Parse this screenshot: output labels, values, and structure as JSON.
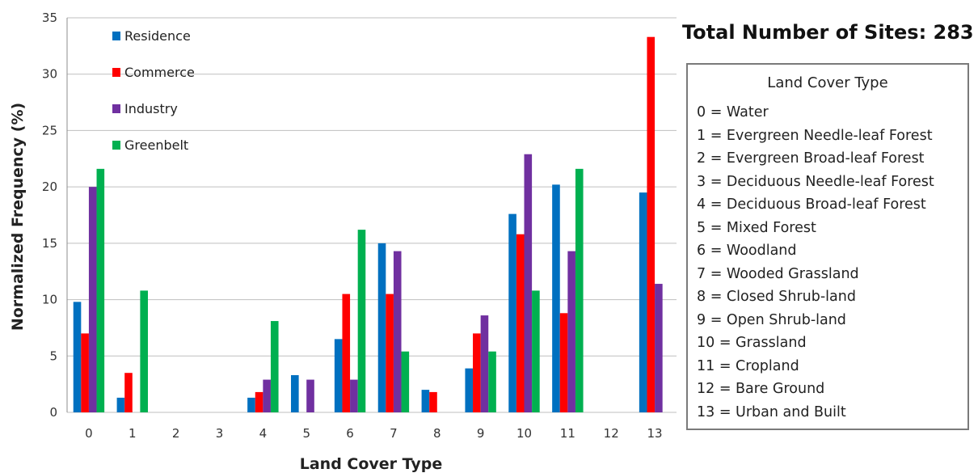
{
  "chart_data": {
    "type": "bar",
    "title": "",
    "xlabel": "Land Cover Type",
    "ylabel": "Normalized Frequency (%)",
    "ylim": [
      0,
      35
    ],
    "yticks": [
      0,
      5,
      10,
      15,
      20,
      25,
      30,
      35
    ],
    "categories": [
      "0",
      "1",
      "2",
      "3",
      "4",
      "5",
      "6",
      "7",
      "8",
      "9",
      "10",
      "11",
      "12",
      "13"
    ],
    "grid": "horizontal",
    "legend_position": "top-left",
    "series": [
      {
        "name": "Residence",
        "color": "#0070c0",
        "values": [
          9.8,
          1.3,
          0,
          0,
          1.3,
          3.3,
          6.5,
          15.0,
          2.0,
          3.9,
          17.6,
          20.2,
          0,
          19.5
        ]
      },
      {
        "name": "Commerce",
        "color": "#ff0000",
        "values": [
          7.0,
          3.5,
          0,
          0,
          1.8,
          0,
          10.5,
          10.5,
          1.8,
          7.0,
          15.8,
          8.8,
          0,
          33.3
        ]
      },
      {
        "name": "Industry",
        "color": "#7030a0",
        "values": [
          20.0,
          0,
          0,
          0,
          2.9,
          2.9,
          2.9,
          14.3,
          0,
          8.6,
          22.9,
          14.3,
          0,
          11.4
        ]
      },
      {
        "name": "Greenbelt",
        "color": "#00b050",
        "values": [
          21.6,
          10.8,
          0,
          0,
          8.1,
          0,
          16.2,
          5.4,
          0,
          5.4,
          10.8,
          21.6,
          0,
          0
        ]
      }
    ]
  },
  "summary": {
    "total_sites_text": "Total Number of Sites: 283",
    "legend_box_title": "Land Cover Type",
    "land_cover_types": [
      "0 = Water",
      "1 = Evergreen Needle-leaf Forest",
      "2 = Evergreen Broad-leaf Forest",
      "3 = Deciduous Needle-leaf Forest",
      "4 = Deciduous Broad-leaf Forest",
      "5 = Mixed Forest",
      "6 = Woodland",
      "7 = Wooded Grassland",
      "8 = Closed Shrub-land",
      "9 = Open Shrub-land",
      "10 = Grassland",
      "11 = Cropland",
      "12 = Bare Ground",
      "13 = Urban and Built"
    ]
  }
}
